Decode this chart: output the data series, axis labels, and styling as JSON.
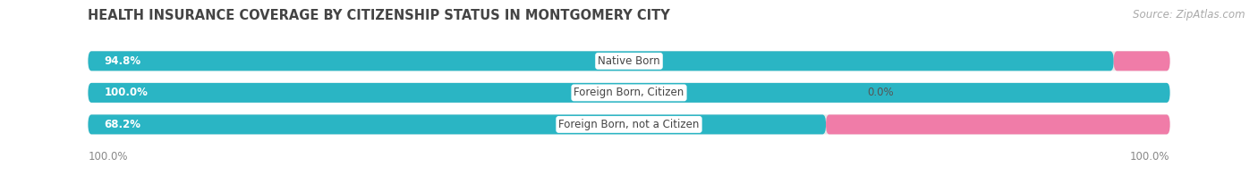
{
  "title": "HEALTH INSURANCE COVERAGE BY CITIZENSHIP STATUS IN MONTGOMERY CITY",
  "source": "Source: ZipAtlas.com",
  "categories": [
    "Native Born",
    "Foreign Born, Citizen",
    "Foreign Born, not a Citizen"
  ],
  "with_coverage": [
    94.8,
    100.0,
    68.2
  ],
  "without_coverage": [
    5.2,
    0.0,
    31.8
  ],
  "color_with": "#2ab5c4",
  "color_without": "#f07ca8",
  "color_bg_bar": "#e8e8e8",
  "title_fontsize": 10.5,
  "source_fontsize": 8.5,
  "bar_label_fontsize": 8.5,
  "pct_label_fontsize": 8.5,
  "legend_fontsize": 9,
  "axis_label_fontsize": 8.5,
  "left_axis_label": "100.0%",
  "right_axis_label": "100.0%",
  "figsize": [
    14.06,
    1.96
  ],
  "dpi": 100
}
